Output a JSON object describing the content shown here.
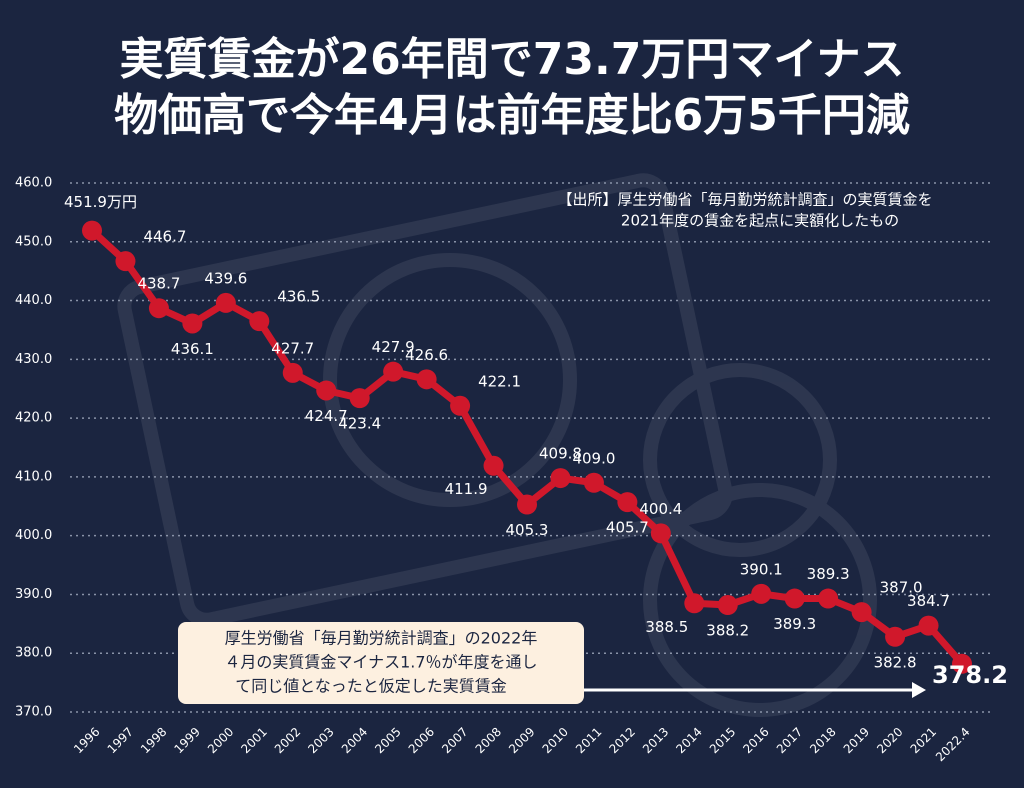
{
  "chart_data": {
    "type": "line",
    "title": [
      "実質賃金が26年間で73.7万円マイナス",
      "物価高で今年4月は前年度比6万5千円減"
    ],
    "source_note": [
      "【出所】厚生労働省「毎月勤労統計調査」の実質賃金を",
      "2021年度の賃金を起点に実額化したもの"
    ],
    "annotation": [
      "厚生労働省「毎月勤労統計調査」の2022年",
      "４月の実質賃金マイナス1.7％が年度を通し",
      "て同じ値となったと仮定した実質賃金"
    ],
    "categories": [
      "1996",
      "1997",
      "1998",
      "1999",
      "2000",
      "2001",
      "2002",
      "2003",
      "2004",
      "2005",
      "2006",
      "2007",
      "2008",
      "2009",
      "2010",
      "2011",
      "2012",
      "2013",
      "2014",
      "2015",
      "2016",
      "2017",
      "2018",
      "2019",
      "2020",
      "2021",
      "2022.4"
    ],
    "series": [
      {
        "name": "実質賃金",
        "color": "#d0182b",
        "values": [
          451.9,
          446.7,
          438.7,
          436.1,
          439.6,
          436.5,
          427.7,
          424.7,
          423.4,
          427.9,
          426.6,
          422.1,
          411.9,
          405.3,
          409.8,
          409.0,
          405.7,
          400.4,
          388.5,
          388.2,
          390.1,
          389.3,
          389.3,
          387.0,
          382.8,
          384.7,
          378.2
        ],
        "value_labels": [
          "451.9万円",
          "446.7",
          "438.7",
          "436.1",
          "439.6",
          "436.5",
          "427.7",
          "424.7",
          "423.4",
          "427.9",
          "426.6",
          "422.1",
          "411.9",
          "405.3",
          "409.8",
          "409.0",
          "405.7",
          "400.4",
          "388.5",
          "388.2",
          "390.1",
          "389.3",
          "389.3",
          "387.0",
          "382.8",
          "384.7",
          "378.2"
        ]
      }
    ],
    "ylim": [
      370,
      460
    ],
    "yticks": [
      {
        "value": 370,
        "label": "370.0"
      },
      {
        "value": 380,
        "label": "380.0"
      },
      {
        "value": 390,
        "label": "390.0"
      },
      {
        "value": 400,
        "label": "400.0"
      },
      {
        "value": 410,
        "label": "410.0"
      },
      {
        "value": 420,
        "label": "420.0"
      },
      {
        "value": 430,
        "label": "430.0"
      },
      {
        "value": 440,
        "label": "440.0"
      },
      {
        "value": 450,
        "label": "450.0"
      },
      {
        "value": 460,
        "label": "460.0"
      }
    ],
    "grid": true
  }
}
